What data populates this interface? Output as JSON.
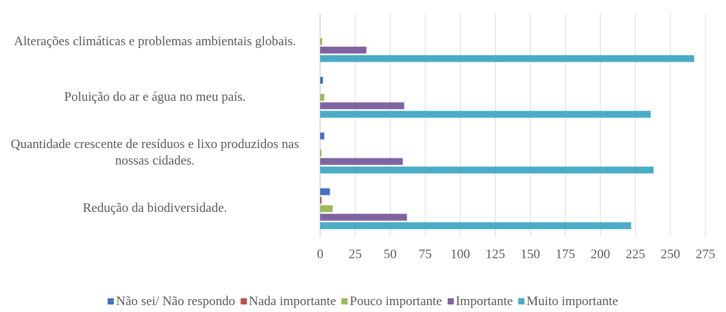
{
  "chart_data": {
    "type": "barh",
    "categories": [
      "Alterações climáticas e problemas ambientais globais.",
      "Poluição do ar e água no meu país.",
      "Quantidade crescente de resíduos e lixo produzidos nas nossas cidades.",
      "Redução da biodiversidade."
    ],
    "series": [
      {
        "name": "Não sei/ Não respondo",
        "color": "#4472c4",
        "values": [
          0,
          2,
          3,
          7
        ]
      },
      {
        "name": "Nada importante",
        "color": "#c0504d",
        "values": [
          0,
          0,
          0,
          1
        ]
      },
      {
        "name": "Pouco importante",
        "color": "#9bbb59",
        "values": [
          1.5,
          3,
          1,
          9
        ]
      },
      {
        "name": "Importante",
        "color": "#8064a2",
        "values": [
          33,
          60,
          59,
          62
        ]
      },
      {
        "name": "Muito importante",
        "color": "#4bacc6",
        "values": [
          267,
          236,
          238,
          222
        ]
      }
    ],
    "xlim": [
      0,
      275
    ],
    "xticks": [
      0,
      25,
      50,
      75,
      100,
      125,
      150,
      175,
      200,
      225,
      250,
      275
    ],
    "grid": true,
    "legend": "bottom"
  }
}
